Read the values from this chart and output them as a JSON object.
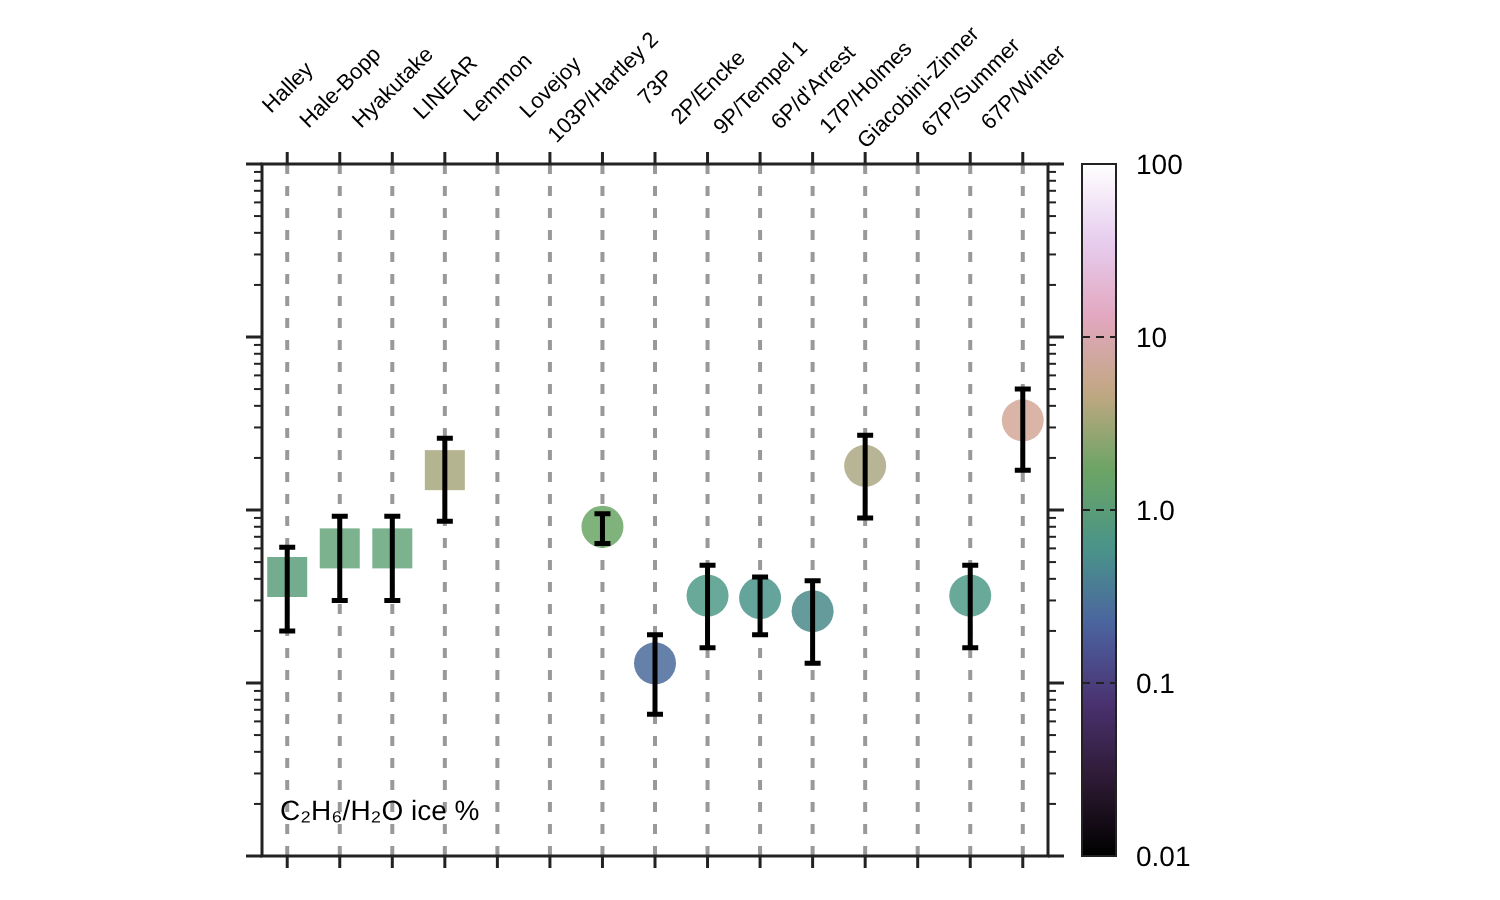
{
  "chart_data": {
    "type": "scatter",
    "categories": [
      "Halley",
      "Hale-Bopp",
      "Hyakutake",
      "LINEAR",
      "Lemmon",
      "Lovejoy",
      "103P/Hartley 2",
      "73P",
      "2P/Encke",
      "9P/Tempel 1",
      "6P/d'Arrest",
      "17P/Holmes",
      "Giacobini-Zinner",
      "67P/Summer",
      "67P/Winter"
    ],
    "series": [
      {
        "marker": "square",
        "values": [
          0.41,
          0.6,
          0.6,
          1.7,
          null,
          null,
          null,
          null,
          null,
          null,
          null,
          null,
          null,
          null,
          null
        ],
        "colors": [
          "#5a9e7a",
          "#65a47a",
          "#65a47a",
          "#a8a77e",
          null,
          null,
          null,
          null,
          null,
          null,
          null,
          null,
          null,
          null,
          null
        ],
        "errors": [
          [
            0.2,
            0.61
          ],
          [
            0.3,
            0.92
          ],
          [
            0.3,
            0.92
          ],
          [
            0.86,
            2.6
          ],
          null,
          null,
          null,
          null,
          null,
          null,
          null,
          null,
          null,
          null,
          null
        ]
      },
      {
        "marker": "circle",
        "values": [
          null,
          null,
          null,
          null,
          null,
          null,
          0.8,
          0.13,
          0.32,
          0.31,
          0.26,
          1.8,
          null,
          0.32,
          3.3
        ],
        "colors": [
          null,
          null,
          null,
          null,
          null,
          null,
          "#6aa464",
          "#4a6a9a",
          "#4f9a88",
          "#4a9488",
          "#4a8a8a",
          "#aaa882",
          null,
          "#4f9a88",
          "#d4a898"
        ],
        "errors": [
          null,
          null,
          null,
          null,
          null,
          null,
          [
            0.64,
            0.95
          ],
          [
            0.066,
            0.19
          ],
          [
            0.16,
            0.48
          ],
          [
            0.19,
            0.41
          ],
          [
            0.13,
            0.39
          ],
          [
            0.9,
            2.7
          ],
          null,
          [
            0.16,
            0.48
          ],
          [
            1.7,
            5.0
          ]
        ]
      }
    ],
    "log": true,
    "ylim": [
      0.01,
      100
    ],
    "yticks": [
      {
        "value": 0.01,
        "label": "0.01"
      },
      {
        "value": 0.1,
        "label": "0.1"
      },
      {
        "value": 1,
        "label": "1.0"
      },
      {
        "value": 10,
        "label": "10"
      },
      {
        "value": 100,
        "label": "100"
      }
    ],
    "grid": "x",
    "annotations": [
      "C₂H₆/H₂O ice %"
    ]
  }
}
